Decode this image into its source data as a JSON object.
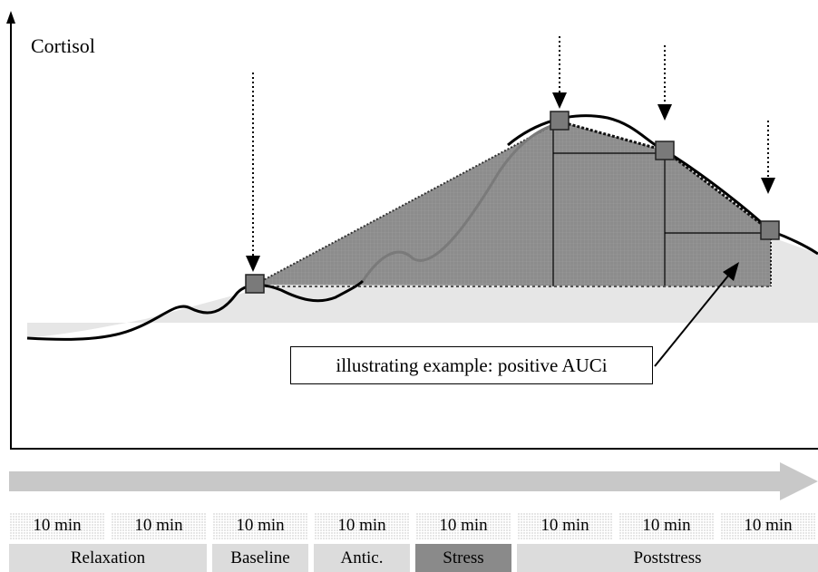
{
  "diagram": {
    "y_axis_label": "Cortisol",
    "callout_text": "illustrating example: positive AUCi",
    "time_blocks": [
      "10 min",
      "10 min",
      "10 min",
      "10 min",
      "10 min",
      "10 min",
      "10 min",
      "10 min"
    ],
    "phases": [
      {
        "label": "Relaxation",
        "span": 2
      },
      {
        "label": "Baseline",
        "span": 1
      },
      {
        "label": "Antic.",
        "span": 1
      },
      {
        "label": "Stress",
        "span": 1,
        "highlight": true
      },
      {
        "label": "Poststress",
        "span": 3
      }
    ],
    "colors": {
      "auc_fill": "#8c8c8c",
      "background_area": "#e6e6e6",
      "curve": "#000000",
      "marker": "#7a7a7a",
      "time_arrow": "#c8c8c8",
      "stress_phase": "#8a8a8a",
      "other_phase": "#dcdcdc"
    },
    "sampling_points": 4
  }
}
